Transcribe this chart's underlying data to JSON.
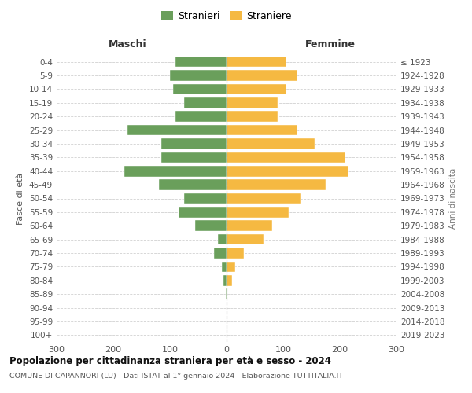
{
  "age_groups": [
    "0-4",
    "5-9",
    "10-14",
    "15-19",
    "20-24",
    "25-29",
    "30-34",
    "35-39",
    "40-44",
    "45-49",
    "50-54",
    "55-59",
    "60-64",
    "65-69",
    "70-74",
    "75-79",
    "80-84",
    "85-89",
    "90-94",
    "95-99",
    "100+"
  ],
  "birth_years": [
    "2019-2023",
    "2014-2018",
    "2009-2013",
    "2004-2008",
    "1999-2003",
    "1994-1998",
    "1989-1993",
    "1984-1988",
    "1979-1983",
    "1974-1978",
    "1969-1973",
    "1964-1968",
    "1959-1963",
    "1954-1958",
    "1949-1953",
    "1944-1948",
    "1939-1943",
    "1934-1938",
    "1929-1933",
    "1924-1928",
    "≤ 1923"
  ],
  "maschi": [
    90,
    100,
    95,
    75,
    90,
    175,
    115,
    115,
    180,
    120,
    75,
    85,
    55,
    15,
    22,
    8,
    5,
    2,
    0,
    0,
    0
  ],
  "femmine": [
    105,
    125,
    105,
    90,
    90,
    125,
    155,
    210,
    215,
    175,
    130,
    110,
    80,
    65,
    30,
    15,
    10,
    2,
    0,
    0,
    0
  ],
  "male_color": "#6a9f5b",
  "female_color": "#f5b942",
  "title": "Popolazione per cittadinanza straniera per età e sesso - 2024",
  "subtitle": "COMUNE DI CAPANNORI (LU) - Dati ISTAT al 1° gennaio 2024 - Elaborazione TUTTITALIA.IT",
  "left_label": "Maschi",
  "right_label": "Femmine",
  "y_left_label": "Fasce di età",
  "y_right_label": "Anni di nascita",
  "legend_male": "Stranieri",
  "legend_female": "Straniere",
  "xlim": 300,
  "background_color": "#ffffff",
  "grid_color": "#cccccc"
}
